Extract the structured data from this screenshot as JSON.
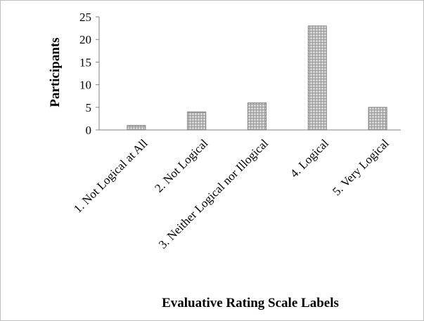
{
  "chart_data": {
    "type": "bar",
    "categories": [
      "1. Not Logical at All",
      "2. Not Logical",
      "3. Neither Logical nor Illogical",
      "4. Logical",
      "5. Very Logical"
    ],
    "values": [
      1,
      4,
      6,
      23,
      5
    ],
    "title": "",
    "xlabel": "Evaluative Rating Scale Labels",
    "ylabel": "Participants",
    "ylim": [
      0,
      25
    ],
    "yticks": [
      "0",
      "5",
      "10",
      "15",
      "20",
      "25"
    ],
    "grid": false,
    "legend": "none",
    "bar_fill": "#c8c8c8",
    "bar_stroke": "#7f7f7f",
    "axis_color": "#808080"
  }
}
